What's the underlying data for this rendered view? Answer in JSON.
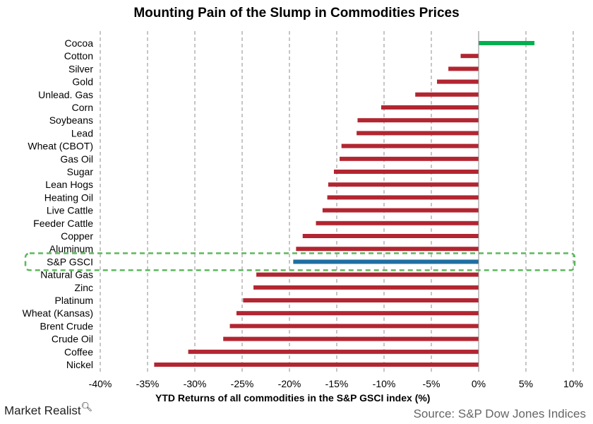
{
  "page": {
    "title": "Mounting Pain of the Slump in Commodities Prices",
    "brand": "Market Realist",
    "source": "Source: S&P Dow Jones Indices"
  },
  "colors": {
    "positive": "#00b050",
    "negative": "#b22631",
    "highlight": "#1f6fa3",
    "highlight_box": "#5cb85c"
  },
  "chart_data": {
    "type": "bar",
    "orientation": "horizontal",
    "title": "Mounting Pain of the Slump in Commodities Prices",
    "xlabel": "YTD Returns of all commodities in the S&P GSCI index (%)",
    "ylabel": "",
    "xlim": [
      -40,
      10
    ],
    "xticks": [
      -40,
      -35,
      -30,
      -25,
      -20,
      -15,
      -10,
      -5,
      0,
      5,
      10
    ],
    "xtick_labels": [
      "-40%",
      "-35%",
      "-30%",
      "-25%",
      "-20%",
      "-15%",
      "-10%",
      "-5%",
      "0%",
      "5%",
      "10%"
    ],
    "grid": "vertical dashed",
    "highlighted_category": "S&P GSCI",
    "categories": [
      "Cocoa",
      "Cotton",
      "Silver",
      "Gold",
      "Unlead. Gas",
      "Corn",
      "Soybeans",
      "Lead",
      "Wheat (CBOT)",
      "Gas Oil",
      "Sugar",
      "Lean Hogs",
      "Heating Oil",
      "Live Cattle",
      "Feeder Cattle",
      "Copper",
      "Aluminum",
      "S&P GSCI",
      "Natural Gas",
      "Zinc",
      "Platinum",
      "Wheat (Kansas)",
      "Brent Crude",
      "Crude Oil",
      "Coffee",
      "Nickel"
    ],
    "values": [
      5.9,
      -1.9,
      -3.2,
      -4.4,
      -6.7,
      -10.3,
      -12.8,
      -12.9,
      -14.5,
      -14.7,
      -15.3,
      -15.9,
      -16.0,
      -16.5,
      -17.2,
      -18.6,
      -19.3,
      -19.6,
      -23.5,
      -23.8,
      -24.9,
      -25.6,
      -26.3,
      -27.0,
      -30.7,
      -34.3
    ]
  }
}
